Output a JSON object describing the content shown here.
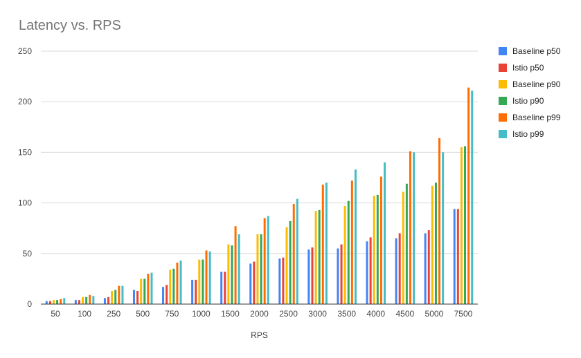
{
  "chart_data": {
    "type": "bar",
    "title": "Latency vs. RPS",
    "xlabel": "RPS",
    "ylabel": "",
    "ylim": [
      0,
      250
    ],
    "yticks": [
      0,
      50,
      100,
      150,
      200,
      250
    ],
    "grid": true,
    "legend_position": "right",
    "categories": [
      "50",
      "100",
      "250",
      "500",
      "750",
      "1000",
      "1500",
      "2000",
      "2500",
      "3000",
      "3500",
      "4000",
      "4500",
      "5000",
      "7500"
    ],
    "series": [
      {
        "name": "Baseline p50",
        "color": "#4285f4",
        "values": [
          3,
          4,
          6,
          14,
          17,
          24,
          32,
          40,
          45,
          54,
          55,
          62,
          65,
          70,
          94
        ]
      },
      {
        "name": "Istio p50",
        "color": "#ea4335",
        "values": [
          3,
          4,
          7,
          13,
          19,
          24,
          32,
          42,
          46,
          56,
          59,
          66,
          70,
          73,
          94
        ]
      },
      {
        "name": "Baseline p90",
        "color": "#fbbc04",
        "values": [
          4,
          7,
          13,
          25,
          34,
          44,
          59,
          69,
          76,
          92,
          97,
          107,
          111,
          117,
          155
        ]
      },
      {
        "name": "Istio p90",
        "color": "#34a853",
        "values": [
          4,
          7,
          14,
          25,
          35,
          44,
          58,
          69,
          82,
          93,
          102,
          108,
          119,
          120,
          156
        ]
      },
      {
        "name": "Baseline p99",
        "color": "#ff6d01",
        "values": [
          5,
          9,
          18,
          30,
          41,
          53,
          77,
          85,
          99,
          118,
          122,
          126,
          151,
          164,
          214
        ]
      },
      {
        "name": "Istio p99",
        "color": "#46bdc6",
        "values": [
          6,
          8,
          18,
          31,
          43,
          52,
          69,
          87,
          104,
          120,
          133,
          140,
          150,
          150,
          211
        ]
      }
    ]
  }
}
